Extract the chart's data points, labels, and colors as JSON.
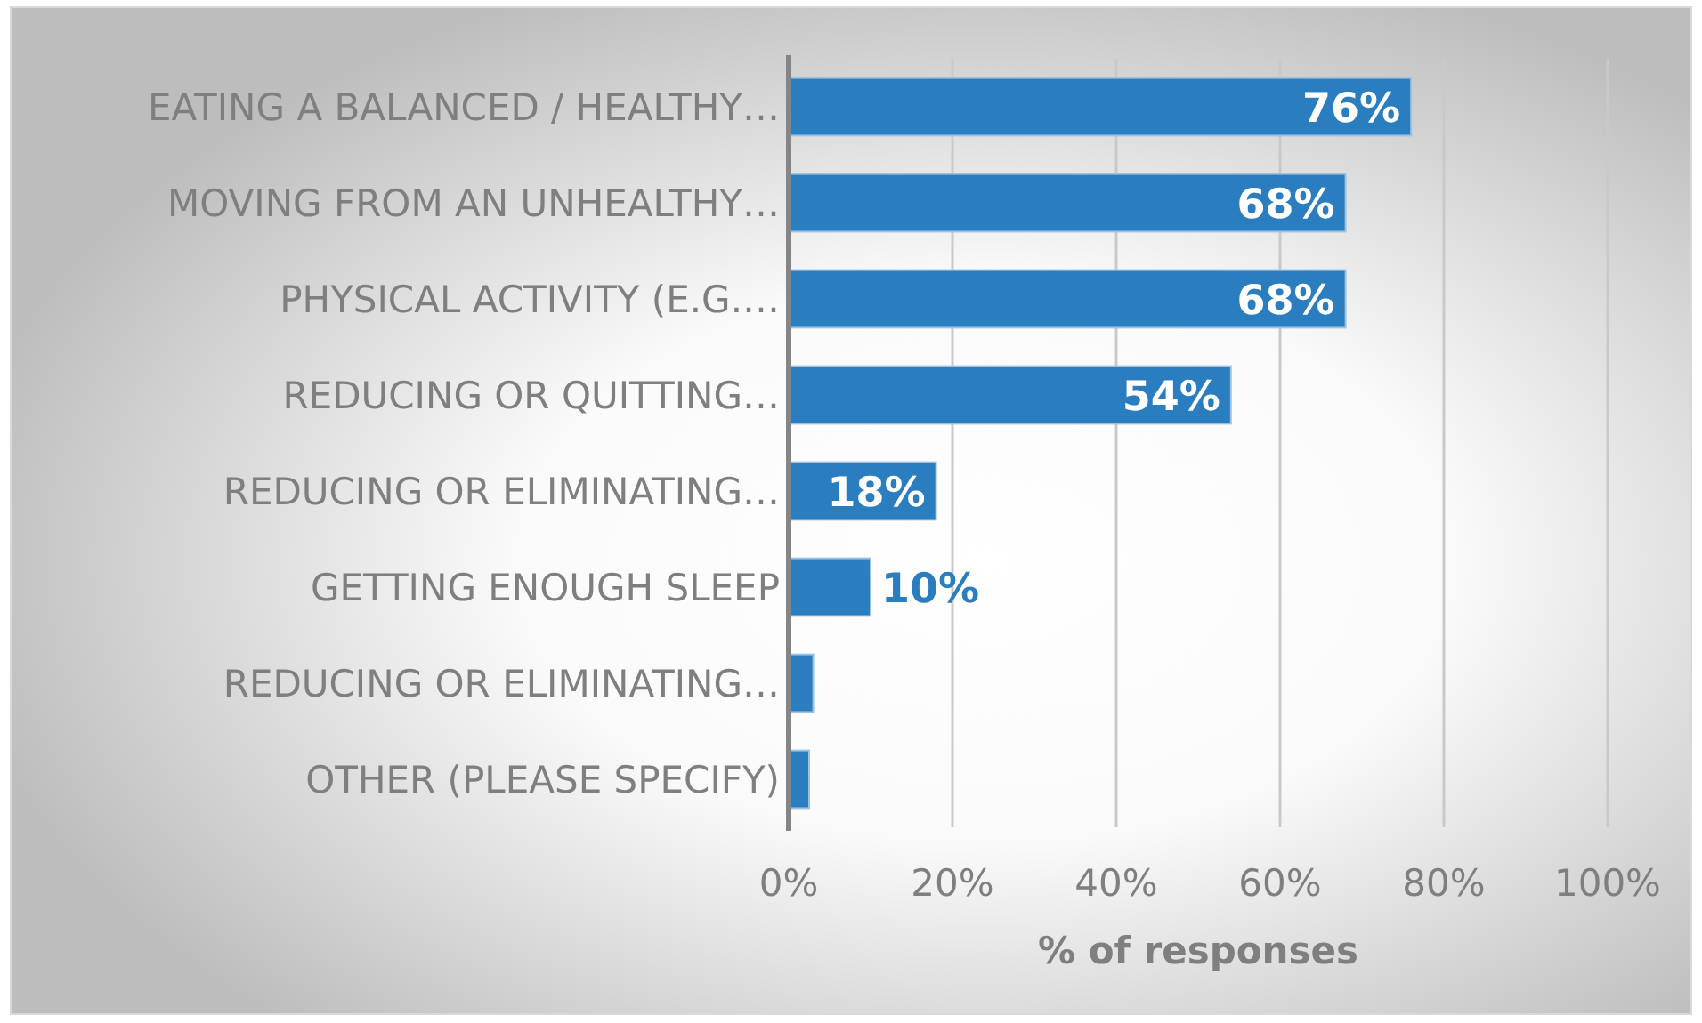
{
  "chart_data": {
    "type": "bar",
    "orientation": "horizontal",
    "categories": [
      "EATING A BALANCED / HEALTHY…",
      "MOVING FROM AN UNHEALTHY…",
      "PHYSICAL ACTIVITY (E.G.…",
      "REDUCING OR QUITTING…",
      "REDUCING OR ELIMINATING…",
      "GETTING ENOUGH SLEEP",
      "REDUCING OR ELIMINATING…",
      "OTHER (PLEASE SPECIFY)"
    ],
    "values": [
      76,
      68,
      68,
      54,
      18,
      10,
      3,
      2.5
    ],
    "value_labels": [
      "76%",
      "68%",
      "68%",
      "54%",
      "18%",
      "10%",
      null,
      null
    ],
    "color": "#2a7ebf",
    "xlabel": "% of responses",
    "xlim": [
      0,
      100
    ],
    "xticks": [
      {
        "value": 0,
        "label": "0%"
      },
      {
        "value": 20,
        "label": "20%"
      },
      {
        "value": 40,
        "label": "40%"
      },
      {
        "value": 60,
        "label": "60%"
      },
      {
        "value": 80,
        "label": "80%"
      },
      {
        "value": 100,
        "label": "100%"
      }
    ],
    "grid": "x"
  }
}
